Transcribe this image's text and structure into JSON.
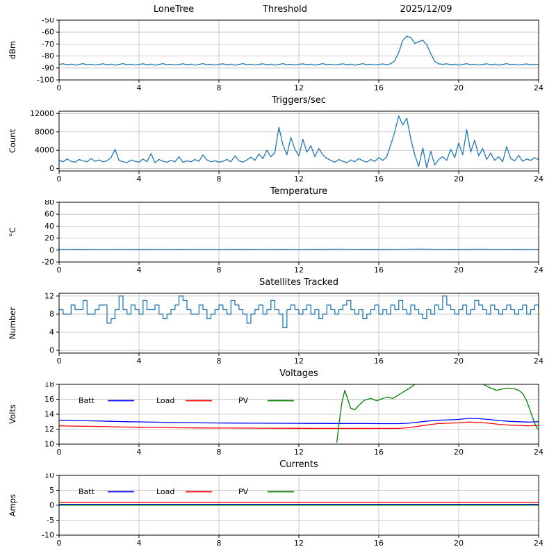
{
  "figure": {
    "background": "#ffffff"
  },
  "chart_data": [
    {
      "type": "line",
      "title_left": "LoneTree",
      "title_mid": "Threshold",
      "title_right": "2025/12/09",
      "ylabel": "dBm",
      "xlim": [
        0,
        24
      ],
      "xticks": [
        0,
        4,
        8,
        12,
        16,
        20,
        24
      ],
      "ylim": [
        -100,
        -50
      ],
      "yticks": [
        -100,
        -90,
        -80,
        -70,
        -60,
        -50
      ],
      "grid": true,
      "series": [
        {
          "name": "Signal",
          "color": "#1f77b4",
          "x_start": 0,
          "x_step": 0.2,
          "values": [
            -87.0,
            -86.5,
            -87.3,
            -86.8,
            -87.6,
            -87.0,
            -86.4,
            -87.2,
            -86.9,
            -87.5,
            -87.0,
            -86.5,
            -87.3,
            -86.8,
            -87.6,
            -87.0,
            -86.4,
            -87.2,
            -86.9,
            -87.5,
            -87.0,
            -86.5,
            -87.3,
            -86.8,
            -87.6,
            -87.0,
            -86.4,
            -87.2,
            -86.9,
            -87.5,
            -87.0,
            -86.5,
            -87.3,
            -86.8,
            -87.6,
            -87.0,
            -86.4,
            -87.2,
            -86.9,
            -87.5,
            -87.0,
            -86.5,
            -87.3,
            -86.8,
            -87.6,
            -87.0,
            -86.4,
            -87.2,
            -86.9,
            -87.5,
            -87.0,
            -86.5,
            -87.3,
            -86.8,
            -87.6,
            -87.0,
            -86.4,
            -87.2,
            -86.9,
            -87.5,
            -87.0,
            -86.5,
            -87.3,
            -86.8,
            -87.6,
            -87.0,
            -86.4,
            -87.2,
            -86.9,
            -87.5,
            -87.0,
            -86.5,
            -87.3,
            -86.8,
            -87.6,
            -87.0,
            -86.4,
            -87.2,
            -86.9,
            -87.5,
            -87.0,
            -86.6,
            -87.2,
            -86.5,
            -84.0,
            -77.0,
            -67.0,
            -63.5,
            -64.5,
            -69.5,
            -68.0,
            -66.8,
            -70.5,
            -78.0,
            -84.5,
            -86.5,
            -87.0,
            -86.5,
            -87.3,
            -86.8,
            -87.6,
            -87.0,
            -86.4,
            -87.2,
            -86.9,
            -87.5,
            -87.0,
            -86.5,
            -87.3,
            -86.8,
            -87.6,
            -87.0,
            -86.4,
            -87.2,
            -86.9,
            -87.5,
            -87.0,
            -86.6,
            -87.3,
            -86.9,
            -87.2
          ]
        }
      ]
    },
    {
      "type": "line",
      "title": "Triggers/sec",
      "ylabel": "Count",
      "xlim": [
        0,
        24
      ],
      "xticks": [
        0,
        4,
        8,
        12,
        16,
        20,
        24
      ],
      "ylim": [
        -500,
        12500
      ],
      "yticks": [
        0,
        4000,
        8000,
        12000
      ],
      "grid": true,
      "series": [
        {
          "name": "Triggers",
          "color": "#1f77b4",
          "x_start": 0,
          "x_step": 0.2,
          "values": [
            1800,
            1500,
            2100,
            1600,
            1400,
            2000,
            1700,
            1500,
            2200,
            1600,
            1900,
            1500,
            1700,
            2400,
            4200,
            1800,
            1500,
            1300,
            1900,
            1600,
            1400,
            2100,
            1500,
            3300,
            1300,
            2000,
            1600,
            1400,
            1800,
            1500,
            2600,
            1400,
            1700,
            1500,
            2000,
            1600,
            3000,
            1900,
            1500,
            1700,
            1400,
            1600,
            2000,
            1500,
            2800,
            1700,
            1400,
            1900,
            2500,
            1800,
            3200,
            2200,
            4000,
            2600,
            3500,
            9000,
            5200,
            3000,
            6800,
            4200,
            2800,
            6400,
            3600,
            5000,
            2600,
            4400,
            3000,
            2200,
            1800,
            1400,
            2000,
            1600,
            1300,
            1900,
            1500,
            2200,
            1700,
            1400,
            2000,
            1600,
            2400,
            1800,
            2600,
            5200,
            8000,
            11500,
            9500,
            11000,
            6500,
            3000,
            500,
            4500,
            200,
            3800,
            800,
            2000,
            2600,
            1800,
            4200,
            2400,
            5600,
            3000,
            8500,
            3600,
            6200,
            2800,
            4400,
            2000,
            3400,
            1800,
            2600,
            1500,
            4800,
            2200,
            1700,
            2900,
            1600,
            2100,
            1800,
            2400,
            1900,
            2100
          ]
        }
      ]
    },
    {
      "type": "line",
      "title": "Temperature",
      "ylabel": "°C",
      "xlim": [
        0,
        24
      ],
      "xticks": [
        0,
        4,
        8,
        12,
        16,
        20,
        24
      ],
      "ylim": [
        -20,
        80
      ],
      "yticks": [
        -20,
        0,
        20,
        40,
        60,
        80
      ],
      "grid": true,
      "series": [
        {
          "name": "Temperature",
          "color": "#1f77b4",
          "x_start": 0,
          "x_step": 1,
          "values": [
            1.5,
            1.2,
            0.8,
            1.0,
            1.2,
            1.0,
            1.3,
            1.1,
            1.0,
            1.2,
            1.4,
            1.2,
            1.0,
            1.3,
            1.5,
            1.3,
            1.2,
            1.4,
            1.6,
            1.4,
            1.3,
            1.5,
            1.4,
            1.2,
            1.3
          ]
        }
      ]
    },
    {
      "type": "line",
      "title": "Satellites Tracked",
      "ylabel": "Number",
      "xlim": [
        0,
        24
      ],
      "xticks": [
        0,
        4,
        8,
        12,
        16,
        20,
        24
      ],
      "ylim": [
        -0.6,
        12.6
      ],
      "yticks": [
        0,
        4,
        8,
        12
      ],
      "grid": true,
      "series": [
        {
          "name": "Satellites",
          "color": "#1f77b4",
          "step": true,
          "x_start": 0,
          "x_step": 0.2,
          "values": [
            9,
            8,
            8,
            10,
            9,
            9,
            11,
            8,
            8,
            9,
            10,
            10,
            6,
            7,
            9,
            12,
            9,
            8,
            10,
            9,
            8,
            11,
            9,
            9,
            10,
            8,
            7,
            8,
            9,
            10,
            12,
            11,
            9,
            8,
            8,
            10,
            9,
            7,
            8,
            9,
            10,
            9,
            8,
            11,
            10,
            9,
            8,
            6,
            8,
            9,
            10,
            8,
            9,
            11,
            9,
            8,
            5,
            9,
            10,
            9,
            8,
            9,
            10,
            8,
            9,
            7,
            8,
            10,
            9,
            8,
            9,
            10,
            11,
            9,
            8,
            9,
            7,
            8,
            9,
            10,
            8,
            9,
            8,
            10,
            9,
            11,
            9,
            8,
            10,
            9,
            8,
            7,
            9,
            8,
            10,
            9,
            12,
            10,
            9,
            8,
            9,
            10,
            8,
            9,
            11,
            10,
            9,
            8,
            10,
            9,
            8,
            9,
            10,
            9,
            8,
            9,
            10,
            8,
            9,
            10,
            9
          ]
        }
      ]
    },
    {
      "type": "line",
      "title": "Voltages",
      "ylabel": "Volts",
      "xlim": [
        0,
        24
      ],
      "xticks": [
        0,
        4,
        8,
        12,
        16,
        20,
        24
      ],
      "ylim": [
        10,
        18
      ],
      "yticks": [
        10,
        12,
        14,
        16,
        18
      ],
      "grid": true,
      "show_legend": true,
      "series": [
        {
          "name": "Batt",
          "color": "#0000ff",
          "x_start": 0,
          "x_step": 0.5,
          "values": [
            13.2,
            13.18,
            13.15,
            13.12,
            13.1,
            13.05,
            13.02,
            13.0,
            12.98,
            12.95,
            12.93,
            12.9,
            12.88,
            12.87,
            12.85,
            12.84,
            12.83,
            12.82,
            12.81,
            12.8,
            12.8,
            12.79,
            12.79,
            12.78,
            12.78,
            12.77,
            12.77,
            12.76,
            12.76,
            12.75,
            12.75,
            12.75,
            12.74,
            12.74,
            12.74,
            12.8,
            12.95,
            13.1,
            13.2,
            13.25,
            13.3,
            13.45,
            13.4,
            13.3,
            13.15,
            13.05,
            13.0,
            12.95,
            13.0
          ]
        },
        {
          "name": "Load",
          "color": "#ff0000",
          "x_start": 0,
          "x_step": 0.5,
          "values": [
            12.45,
            12.42,
            12.4,
            12.38,
            12.35,
            12.33,
            12.3,
            12.28,
            12.26,
            12.24,
            12.22,
            12.2,
            12.19,
            12.18,
            12.17,
            12.16,
            12.15,
            12.15,
            12.14,
            12.14,
            12.13,
            12.13,
            12.12,
            12.12,
            12.11,
            12.11,
            12.1,
            12.1,
            12.1,
            12.1,
            12.1,
            12.1,
            12.1,
            12.1,
            12.1,
            12.2,
            12.4,
            12.6,
            12.75,
            12.8,
            12.85,
            12.95,
            12.9,
            12.8,
            12.65,
            12.55,
            12.5,
            12.45,
            12.5
          ]
        },
        {
          "name": "PV",
          "color": "#008000",
          "x": [
            13.9,
            14.0,
            14.15,
            14.3,
            14.45,
            14.6,
            14.8,
            15.0,
            15.3,
            15.6,
            15.9,
            16.1,
            16.4,
            16.7,
            17.0,
            17.3,
            17.6,
            18.0,
            18.5,
            19.0,
            19.5,
            20.0,
            20.5,
            21.0,
            21.3,
            21.6,
            21.9,
            22.2,
            22.5,
            22.8,
            23.0,
            23.2,
            23.4,
            23.6,
            23.8,
            23.95
          ],
          "values": [
            10.2,
            12.5,
            15.5,
            17.2,
            16.0,
            14.8,
            14.6,
            15.2,
            15.9,
            16.1,
            15.8,
            16.0,
            16.3,
            16.1,
            16.6,
            17.1,
            17.6,
            18.4,
            19.0,
            19.2,
            19.3,
            19.2,
            19.0,
            18.4,
            17.9,
            17.5,
            17.2,
            17.4,
            17.5,
            17.4,
            17.2,
            16.8,
            15.8,
            14.3,
            12.8,
            12.0
          ]
        }
      ]
    },
    {
      "type": "line",
      "title": "Currents",
      "ylabel": "Amps",
      "xlim": [
        0,
        24
      ],
      "xticks": [
        0,
        4,
        8,
        12,
        16,
        20,
        24
      ],
      "ylim": [
        -10,
        10
      ],
      "yticks": [
        -10,
        -5,
        0,
        5,
        10
      ],
      "grid": true,
      "show_legend": true,
      "series": [
        {
          "name": "Batt",
          "color": "#0000ff",
          "x_start": 0,
          "x_step": 2,
          "values": [
            0.3,
            0.3,
            0.3,
            0.3,
            0.3,
            0.3,
            0.3,
            0.3,
            0.3,
            0.3,
            0.3,
            0.3,
            0.3
          ]
        },
        {
          "name": "Load",
          "color": "#ff0000",
          "x_start": 0,
          "x_step": 2,
          "values": [
            1.0,
            1.0,
            1.0,
            1.0,
            1.0,
            1.0,
            1.0,
            1.0,
            1.0,
            1.0,
            1.0,
            1.0,
            1.0
          ]
        },
        {
          "name": "PV",
          "color": "#008000",
          "x_start": 0,
          "x_step": 2,
          "values": [
            0.05,
            0.05,
            0.05,
            0.05,
            0.05,
            0.05,
            0.05,
            0.05,
            0.05,
            0.05,
            0.05,
            0.05,
            0.05
          ]
        }
      ]
    }
  ]
}
